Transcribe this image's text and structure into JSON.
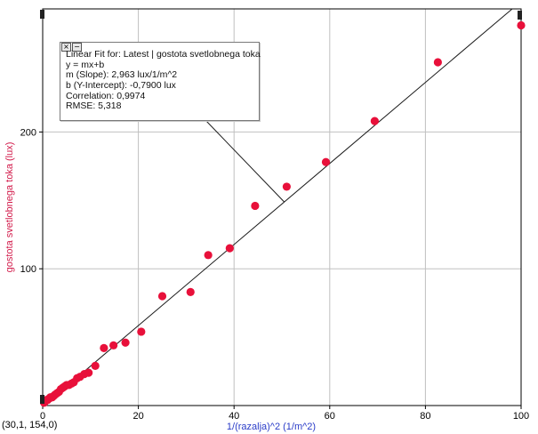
{
  "cursor_readout": "(30,1, 154,0)",
  "fit_box": {
    "close_symbol": "×",
    "minimize_symbol": "−",
    "lines": [
      "Linear Fit for:  Latest | gostota svetlobnega toka",
      "y = mx+b",
      "m (Slope): 2,963 lux/1/m^2",
      "b (Y-Intercept): -0,7900 lux",
      "Correlation: 0,9974",
      "RMSE: 5,318"
    ]
  },
  "colors": {
    "point": "#e8103a",
    "ylabel": "#d21a4a",
    "xlabel": "#2a3cc8",
    "grid": "#c0c0c0",
    "fit_line": "#1a1a1a"
  },
  "chart_data": {
    "type": "scatter",
    "xlabel": "1/(razalja)^2 (1/m^2)",
    "ylabel": "gostota svetlobnega toka (lux)",
    "xlim": [
      0,
      100
    ],
    "ylim": [
      0,
      290
    ],
    "xticks": [
      0,
      20,
      40,
      60,
      80,
      100
    ],
    "yticks": [
      100,
      200
    ],
    "grid": true,
    "fit": {
      "slope": 2.963,
      "intercept": -0.79
    },
    "points": [
      [
        0.3,
        2
      ],
      [
        0.5,
        3
      ],
      [
        0.7,
        4
      ],
      [
        1.0,
        4
      ],
      [
        1.3,
        5
      ],
      [
        1.6,
        6
      ],
      [
        2.0,
        6
      ],
      [
        2.3,
        7
      ],
      [
        2.6,
        8
      ],
      [
        3.0,
        9
      ],
      [
        3.4,
        10
      ],
      [
        3.8,
        12
      ],
      [
        4.2,
        13
      ],
      [
        4.6,
        14
      ],
      [
        5.0,
        15
      ],
      [
        5.5,
        15
      ],
      [
        6.0,
        16
      ],
      [
        6.5,
        17
      ],
      [
        7.2,
        20
      ],
      [
        7.8,
        21
      ],
      [
        8.7,
        23
      ],
      [
        9.6,
        24
      ],
      [
        11.0,
        29
      ],
      [
        12.8,
        42
      ],
      [
        14.8,
        44
      ],
      [
        17.3,
        46
      ],
      [
        20.6,
        54
      ],
      [
        25.0,
        80
      ],
      [
        30.9,
        83
      ],
      [
        34.6,
        110
      ],
      [
        39.1,
        115
      ],
      [
        44.4,
        146
      ],
      [
        51.0,
        160
      ],
      [
        59.2,
        178
      ],
      [
        69.4,
        208
      ],
      [
        82.6,
        251
      ],
      [
        100.0,
        278
      ]
    ]
  }
}
